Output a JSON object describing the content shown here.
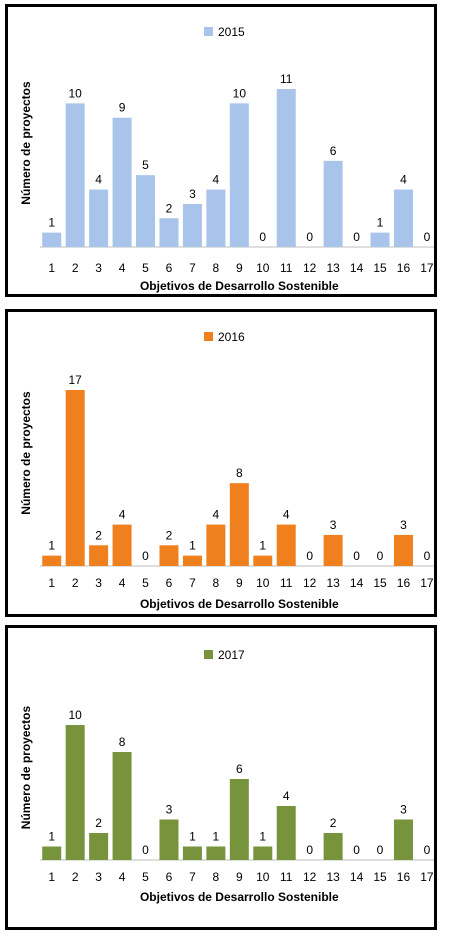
{
  "chart_data": [
    {
      "type": "bar",
      "legend": "2015",
      "color": "#a9c4eb",
      "categories": [
        "1",
        "2",
        "3",
        "4",
        "5",
        "6",
        "7",
        "8",
        "9",
        "10",
        "11",
        "12",
        "13",
        "14",
        "15",
        "16",
        "17"
      ],
      "values": [
        1,
        10,
        4,
        9,
        5,
        2,
        3,
        4,
        10,
        0,
        11,
        0,
        6,
        0,
        1,
        4,
        0
      ],
      "xlabel": "Objetivos de Desarrollo Sostenible",
      "ylabel": "Número de proyectos",
      "ylim": [
        0,
        11
      ],
      "legend_position": "top-center",
      "grid": false
    },
    {
      "type": "bar",
      "legend": "2016",
      "color": "#f07f1e",
      "categories": [
        "1",
        "2",
        "3",
        "4",
        "5",
        "6",
        "7",
        "8",
        "9",
        "10",
        "11",
        "12",
        "13",
        "14",
        "15",
        "16",
        "17"
      ],
      "values": [
        1,
        17,
        2,
        4,
        0,
        2,
        1,
        4,
        8,
        1,
        4,
        0,
        3,
        0,
        0,
        3,
        0
      ],
      "xlabel": "Objetivos de Desarrollo Sostenible",
      "ylabel": "Número de proyectos",
      "ylim": [
        0,
        17
      ],
      "legend_position": "top-center",
      "grid": false
    },
    {
      "type": "bar",
      "legend": "2017",
      "color": "#77933c",
      "categories": [
        "1",
        "2",
        "3",
        "4",
        "5",
        "6",
        "7",
        "8",
        "9",
        "10",
        "11",
        "12",
        "13",
        "14",
        "15",
        "16",
        "17"
      ],
      "values": [
        1,
        10,
        2,
        8,
        0,
        3,
        1,
        1,
        6,
        1,
        4,
        0,
        2,
        0,
        0,
        3,
        0
      ],
      "xlabel": "Objetivos de Desarrollo Sostenible",
      "ylabel": "Número de proyectos",
      "ylim": [
        0,
        10
      ],
      "legend_position": "top-center",
      "grid": false
    }
  ]
}
